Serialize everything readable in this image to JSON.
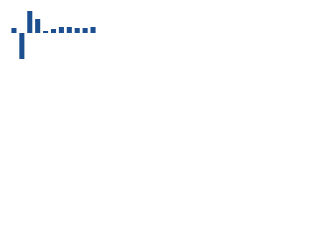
{
  "chart_data": {
    "type": "bar",
    "categories": [
      null,
      null,
      null,
      null,
      null,
      null,
      null,
      null,
      null,
      null,
      null
    ],
    "values": [
      5,
      -26,
      22,
      14,
      2,
      4,
      6,
      6,
      5,
      5,
      6
    ],
    "color": "#1c4f8f",
    "ylim": [
      -30,
      25
    ]
  }
}
